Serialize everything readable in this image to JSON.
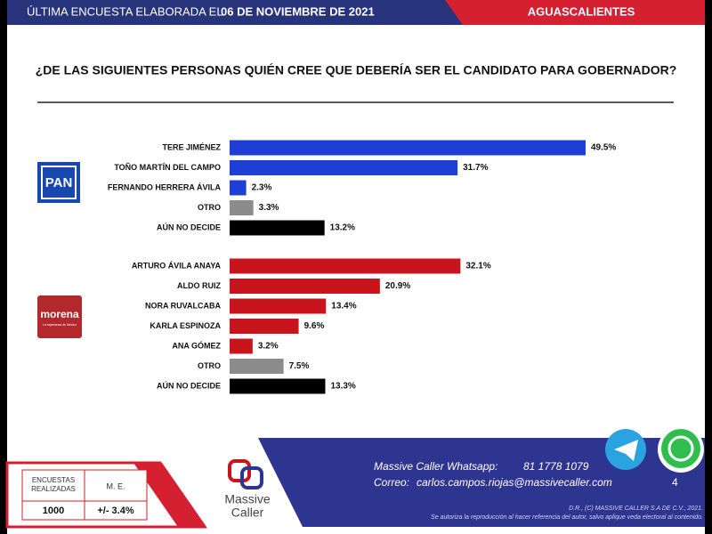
{
  "header": {
    "prefix": "ÚLTIMA ENCUESTA ELABORADA EL",
    "date": "06 DE NOVIEMBRE DE 2021",
    "region": "AGUASCALIENTES",
    "question": "¿DE LAS SIGUIENTES PERSONAS QUIÉN CREE QUE DEBERÍA SER EL CANDIDATO PARA GOBERNADOR?"
  },
  "chart_data": [
    {
      "type": "bar",
      "party_logo": "PAN",
      "categories": [
        "TERE JIMÉNEZ",
        "TOÑO MARTÍN DEL CAMPO",
        "FERNANDO HERRERA ÁVILA",
        "OTRO",
        "AÚN NO DECIDE"
      ],
      "values": [
        49.5,
        31.7,
        2.3,
        3.3,
        13.2
      ],
      "value_labels": [
        "49.5%",
        "31.7%",
        "2.3%",
        "3.3%",
        "13.2%"
      ],
      "colors": [
        "#1e3fd6",
        "#1e3fd6",
        "#1e3fd6",
        "#8c8c8c",
        "#000000"
      ]
    },
    {
      "type": "bar",
      "party_logo": "morena",
      "party_tagline": "La esperanza de México",
      "categories": [
        "ARTURO ÁVILA ANAYA",
        "ALDO RUIZ",
        "NORA RUVALCABA",
        "KARLA ESPINOZA",
        "ANA GÓMEZ",
        "OTRO",
        "AÚN NO DECIDE"
      ],
      "values": [
        32.1,
        20.9,
        13.4,
        9.6,
        3.2,
        7.5,
        13.3
      ],
      "value_labels": [
        "32.1%",
        "20.9%",
        "13.4%",
        "9.6%",
        "3.2%",
        "7.5%",
        "13.3%"
      ],
      "colors": [
        "#c8141c",
        "#c8141c",
        "#c8141c",
        "#c8141c",
        "#c8141c",
        "#8c8c8c",
        "#000000"
      ]
    }
  ],
  "footer": {
    "table": {
      "headers": [
        "ENCUESTAS REALIZADAS",
        "M. E."
      ],
      "values": [
        "1000",
        "+/- 3.4%"
      ]
    },
    "brand": [
      "Massive",
      "Caller"
    ],
    "whatsapp_label": "Massive Caller Whatsapp:",
    "whatsapp": "81 1778 1079",
    "email_label": "Correo:",
    "email": "carlos.campos.riojas@massivecaller.com",
    "page": "4",
    "copyright": "D.R., (C) MASSIVE CALLER S.A DE C.V., 2021.",
    "notice": "Se autoriza la reproducción al hacer referencia del autor, salvo aplique veda electoral al contenido."
  }
}
